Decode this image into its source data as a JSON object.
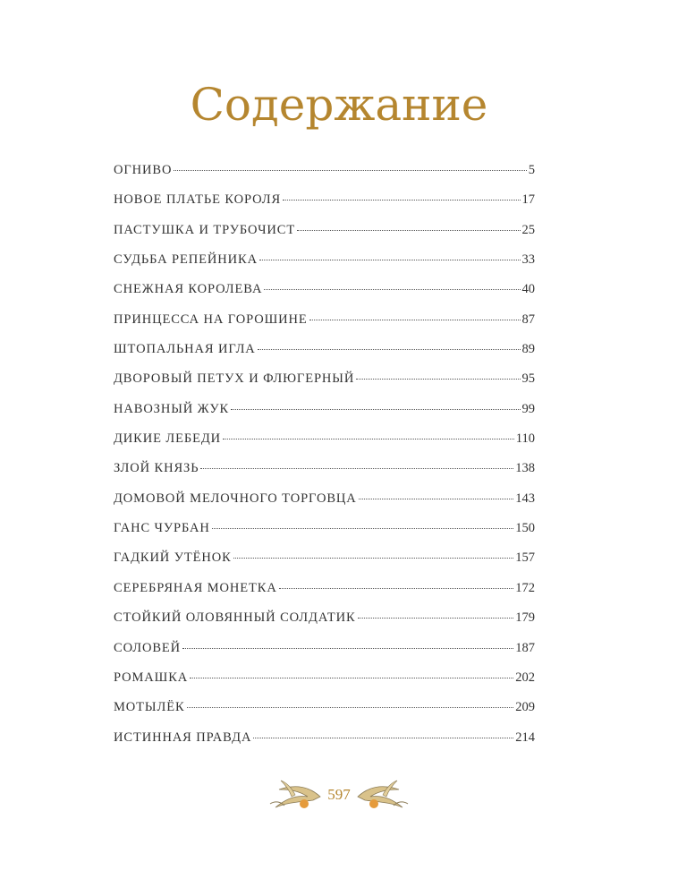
{
  "title": "Содержание",
  "entries": [
    {
      "title": "ОГНИВО",
      "page": "5"
    },
    {
      "title": "НОВОЕ ПЛАТЬЕ КОРОЛЯ",
      "page": "17"
    },
    {
      "title": "ПАСТУШКА И ТРУБОЧИСТ",
      "page": "25"
    },
    {
      "title": "СУДЬБА РЕПЕЙНИКА",
      "page": "33"
    },
    {
      "title": "СНЕЖНАЯ КОРОЛЕВА",
      "page": "40"
    },
    {
      "title": "ПРИНЦЕССА НА ГОРОШИНЕ",
      "page": "87"
    },
    {
      "title": "ШТОПАЛЬНАЯ ИГЛА",
      "page": "89"
    },
    {
      "title": "ДВОРОВЫЙ ПЕТУХ И ФЛЮГЕРНЫЙ",
      "page": "95"
    },
    {
      "title": "НАВОЗНЫЙ ЖУК",
      "page": "99"
    },
    {
      "title": "ДИКИЕ ЛЕБЕДИ",
      "page": "110"
    },
    {
      "title": "ЗЛОЙ КНЯЗЬ",
      "page": "138"
    },
    {
      "title": "ДОМОВОЙ МЕЛОЧНОГО ТОРГОВЦА",
      "page": "143"
    },
    {
      "title": "ГАНС ЧУРБАН",
      "page": "150"
    },
    {
      "title": "ГАДКИЙ УТЁНОК",
      "page": "157"
    },
    {
      "title": "СЕРЕБРЯНАЯ МОНЕТКА",
      "page": "172"
    },
    {
      "title": "СТОЙКИЙ ОЛОВЯННЫЙ СОЛДАТИК",
      "page": "179"
    },
    {
      "title": "СОЛОВЕЙ",
      "page": "187"
    },
    {
      "title": "РОМАШКА",
      "page": "202"
    },
    {
      "title": "МОТЫЛЁК",
      "page": "209"
    },
    {
      "title": "ИСТИННАЯ ПРАВДА",
      "page": "214"
    }
  ],
  "page_number": "597",
  "colors": {
    "accent": "#b5862f",
    "text": "#333333"
  }
}
